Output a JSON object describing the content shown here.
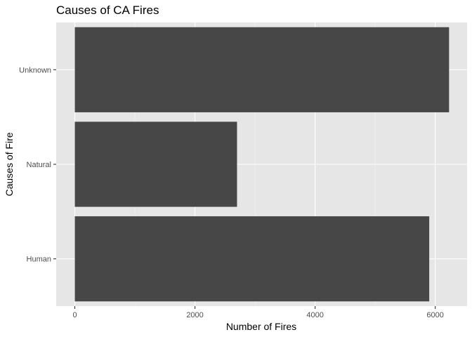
{
  "chart_data": {
    "type": "bar",
    "orientation": "horizontal",
    "title": "Causes of CA Fires",
    "xlabel": "Number of Fires",
    "ylabel": "Causes of Fire",
    "categories": [
      "Human",
      "Natural",
      "Unknown"
    ],
    "values": [
      5900,
      2700,
      6230
    ],
    "xlim": [
      -310,
      6530
    ],
    "xticks": [
      0,
      2000,
      4000,
      6000
    ],
    "xtick_labels": [
      "0",
      "2000",
      "4000",
      "6000"
    ],
    "grid": true,
    "legend": "none",
    "colors": {
      "bar": "#474747",
      "panel_background": "#e6e6e6",
      "grid_major": "#ffffff",
      "grid_minor": "#f2f2f2",
      "tick_text": "#4d4d4d"
    }
  }
}
